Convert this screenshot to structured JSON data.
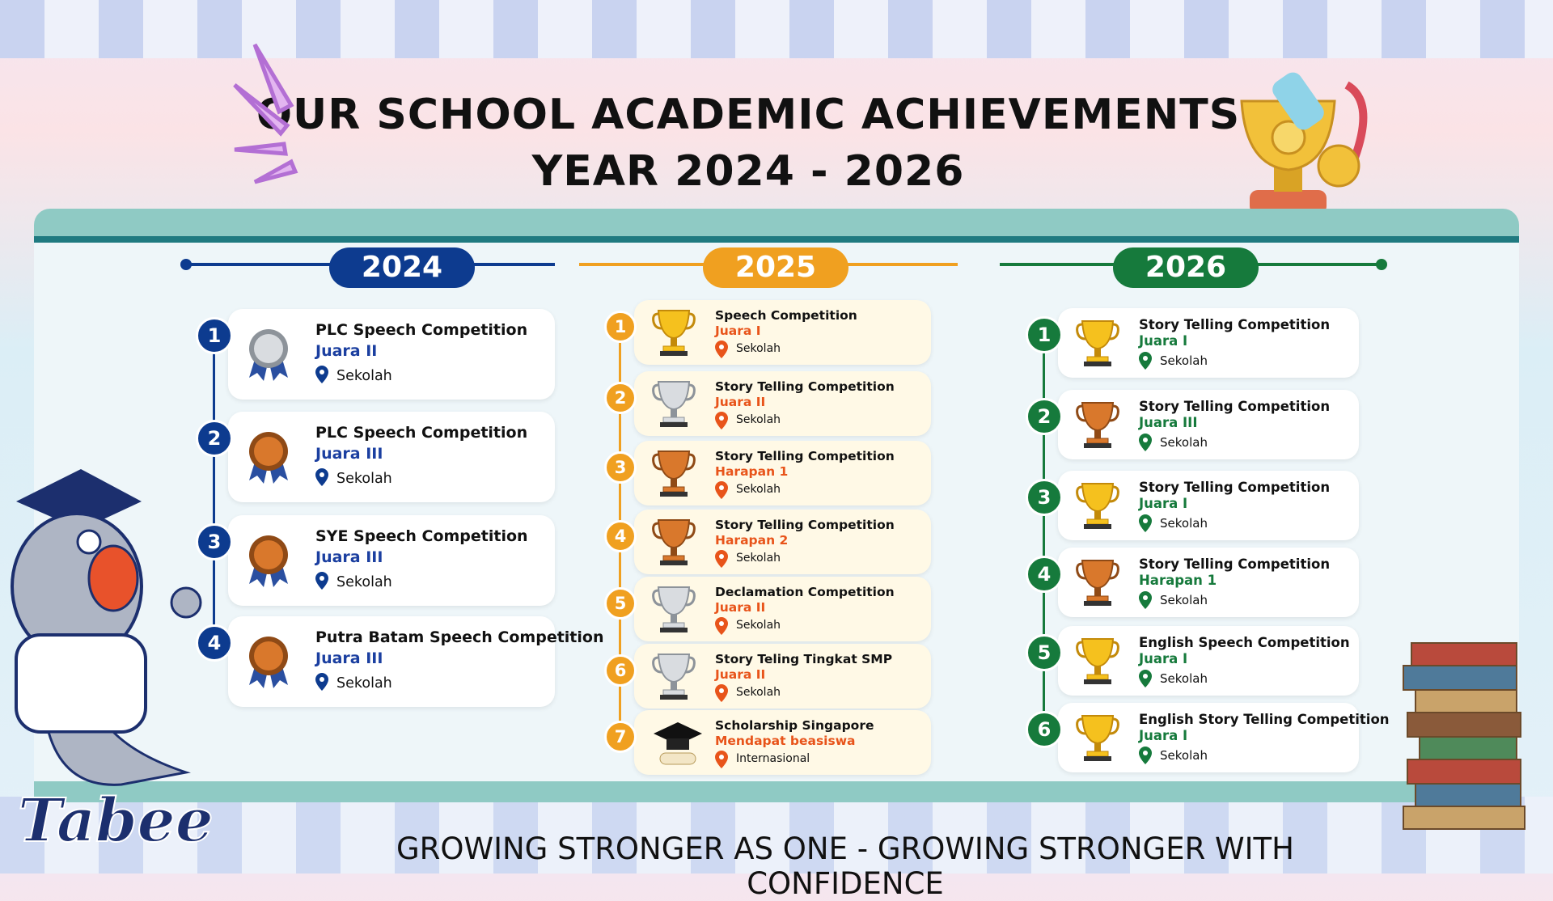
{
  "header": {
    "title_line1": "OUR SCHOOL ACADEMIC ACHIEVEMENTS",
    "title_line2": "YEAR 2024 - 2026"
  },
  "columns": [
    {
      "year": "2024",
      "items": [
        {
          "number": 1,
          "title": "PLC Speech Competition",
          "rank": "Juara II",
          "location": "Sekolah"
        },
        {
          "number": 2,
          "title": "PLC Speech Competition",
          "rank": "Juara III",
          "location": "Sekolah"
        },
        {
          "number": 3,
          "title": "SYE Speech Competition",
          "rank": "Juara III",
          "location": "Sekolah"
        },
        {
          "number": 4,
          "title": "Putra Batam Speech Competition",
          "rank": "Juara III",
          "location": "Sekolah"
        }
      ]
    },
    {
      "year": "2025",
      "items": [
        {
          "number": 1,
          "title": "Speech Competition",
          "rank": "Juara I",
          "location": "Sekolah"
        },
        {
          "number": 2,
          "title": "Story Telling Competition",
          "rank": "Juara II",
          "location": "Sekolah"
        },
        {
          "number": 3,
          "title": "Story Telling Competition",
          "rank": "Harapan 1",
          "location": "Sekolah"
        },
        {
          "number": 4,
          "title": "Story Telling Competition",
          "rank": "Harapan 2",
          "location": "Sekolah"
        },
        {
          "number": 5,
          "title": "Declamation Competition",
          "rank": "Juara II",
          "location": "Sekolah"
        },
        {
          "number": 6,
          "title": "Story Teling Tingkat SMP",
          "rank": "Juara II",
          "location": "Sekolah"
        },
        {
          "number": 7,
          "title": "Scholarship Singapore",
          "rank": "Mendapat beasiswa",
          "location": "Internasional"
        }
      ]
    },
    {
      "year": "2026",
      "items": [
        {
          "number": 1,
          "title": "Story Telling Competition",
          "rank": "Juara I",
          "location": "Sekolah"
        },
        {
          "number": 2,
          "title": "Story Telling Competition",
          "rank": "Juara III",
          "location": "Sekolah"
        },
        {
          "number": 3,
          "title": "Story Telling Competition",
          "rank": "Juara I",
          "location": "Sekolah"
        },
        {
          "number": 4,
          "title": "Story Telling Competition",
          "rank": "Harapan 1",
          "location": "Sekolah"
        },
        {
          "number": 5,
          "title": "English Speech Competition",
          "rank": "Juara I",
          "location": "Sekolah"
        },
        {
          "number": 6,
          "title": "English Story Telling Competition",
          "rank": "Juara I",
          "location": "Sekolah"
        }
      ]
    }
  ],
  "footer": {
    "tagline": "GROWING STRONGER AS ONE - GROWING STRONGER WITH CONFIDENCE",
    "logo": "Tabee"
  }
}
